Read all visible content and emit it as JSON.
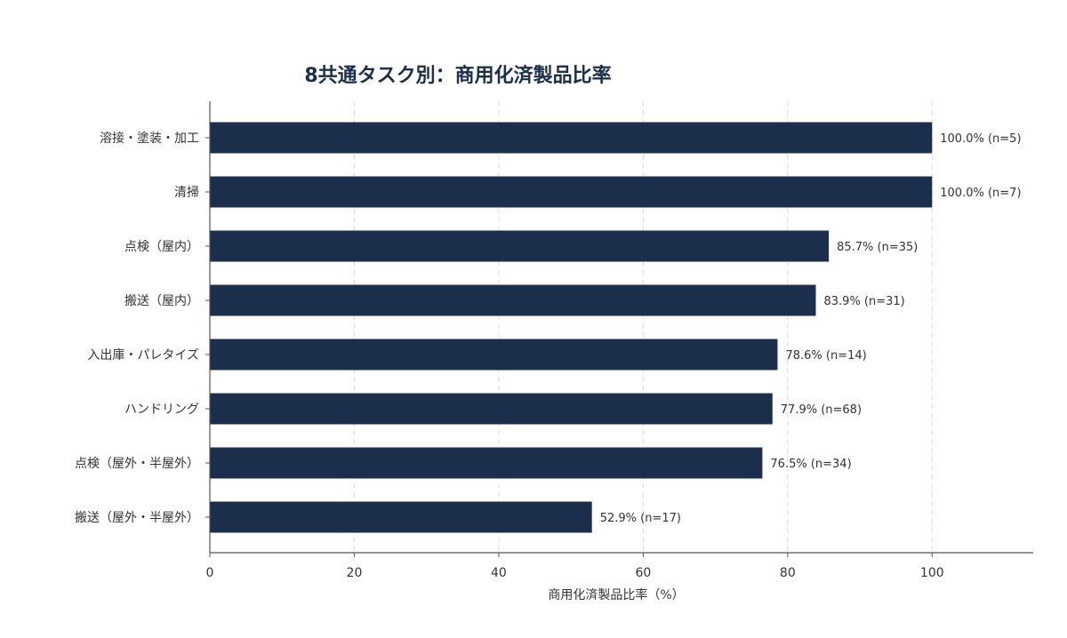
{
  "colors": {
    "bar": "#1b2f4d",
    "title": "#1b2f4d",
    "text": "#333333",
    "axis": "#555555",
    "grid": "#d8dde6"
  },
  "chart_data": {
    "type": "bar",
    "orientation": "horizontal",
    "title": "8共通タスク別：商用化済製品比率",
    "xlabel": "商用化済製品比率（%）",
    "ylabel": "",
    "xlim": [
      0,
      114
    ],
    "xticks": [
      0,
      20,
      40,
      60,
      80,
      100
    ],
    "grid": "vertical dashed",
    "categories": [
      "溶接・塗装・加工",
      "清掃",
      "点検（屋内）",
      "搬送（屋内）",
      "入出庫・パレタイズ",
      "ハンドリング",
      "点検（屋外・半屋外）",
      "搬送（屋外・半屋外）"
    ],
    "values": [
      100.0,
      100.0,
      85.7,
      83.9,
      78.6,
      77.9,
      76.5,
      52.9
    ],
    "data_labels": [
      "100.0% (n=5)",
      "100.0% (n=7)",
      "85.7% (n=35)",
      "83.9% (n=31)",
      "78.6% (n=14)",
      "77.9% (n=68)",
      "76.5% (n=34)",
      "52.9% (n=17)"
    ]
  }
}
